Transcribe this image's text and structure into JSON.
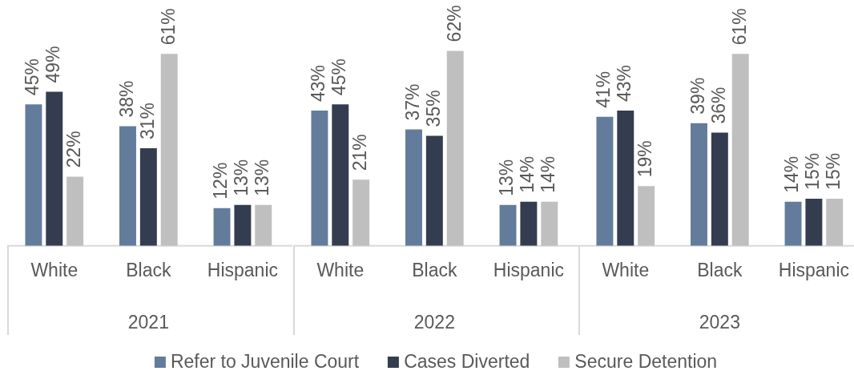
{
  "chart_data": [
    {
      "type": "bar",
      "xlabel": "2021",
      "categories": [
        "White",
        "Black",
        "Hispanic"
      ],
      "series": [
        {
          "color": "#647c9b",
          "values": [
            45,
            38,
            12
          ],
          "value_labels": [
            "45%",
            "38%",
            "12%"
          ]
        },
        {
          "color": "#333d4f",
          "values": [
            49,
            31,
            13
          ],
          "value_labels": [
            "49%",
            "31%",
            "13%"
          ]
        },
        {
          "color": "#bfbfbf",
          "values": [
            22,
            61,
            13
          ],
          "value_labels": [
            "22%",
            "61%",
            "13%"
          ]
        }
      ],
      "tick_labels": "x"
    },
    {
      "type": "bar",
      "xlabel": "2022",
      "categories": [
        "White",
        "Black",
        "Hispanic"
      ],
      "series": [
        {
          "name": "Refer to Juvenile Court",
          "color": "#647c9b",
          "values": [
            43,
            37,
            13
          ],
          "value_labels": [
            "43%",
            "37%",
            "13%"
          ]
        },
        {
          "name": "Cases Diverted",
          "color": "#333d4f",
          "values": [
            45,
            35,
            14
          ],
          "value_labels": [
            "45%",
            "35%",
            "14%"
          ]
        },
        {
          "name": "Secure Detention",
          "color": "#bfbfbf",
          "values": [
            21,
            62,
            14
          ],
          "value_labels": [
            "21%",
            "62%",
            "14%"
          ]
        }
      ],
      "tick_labels": "x",
      "legend": "bottom"
    },
    {
      "type": "bar",
      "xlabel": "2023",
      "categories": [
        "White",
        "Black",
        "Hispanic"
      ],
      "series": [
        {
          "color": "#647c9b",
          "values": [
            41,
            39,
            14
          ],
          "value_labels": [
            "41%",
            "39%",
            "14%"
          ]
        },
        {
          "color": "#333d4f",
          "values": [
            43,
            36,
            15
          ],
          "value_labels": [
            "43%",
            "36%",
            "15%"
          ]
        },
        {
          "color": "#bfbfbf",
          "values": [
            19,
            61,
            15
          ],
          "value_labels": [
            "19%",
            "61%",
            "15%"
          ]
        }
      ],
      "tick_labels": "x"
    }
  ]
}
